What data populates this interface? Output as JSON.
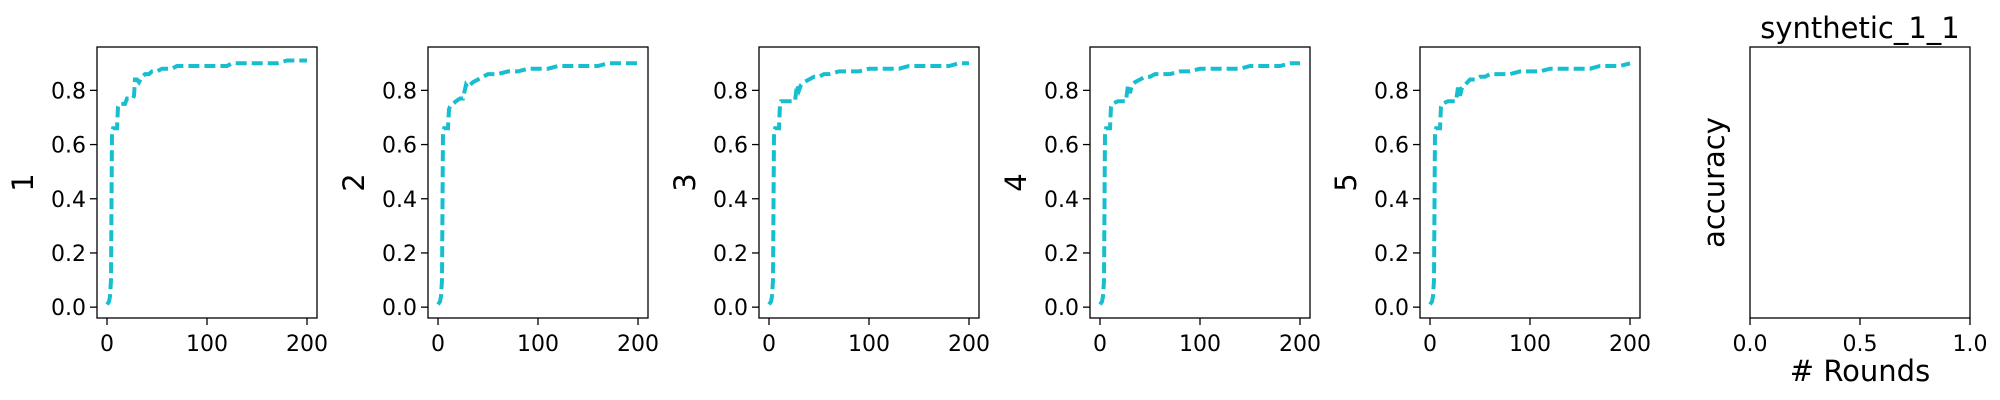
{
  "style": {
    "series_color": "#17becf"
  },
  "chart_data": [
    {
      "type": "line",
      "ylabel": "1",
      "xticks": [
        "0",
        "100",
        "200"
      ],
      "yticks": [
        "0.0",
        "0.2",
        "0.4",
        "0.6",
        "0.8"
      ],
      "xlim": [
        -10,
        210
      ],
      "ylim": [
        -0.04,
        0.96
      ],
      "grid": false,
      "series": [
        {
          "x": [
            0,
            2,
            3,
            4,
            5,
            6,
            8,
            10,
            11,
            12,
            18,
            19,
            20,
            26,
            27,
            28,
            30,
            32,
            35,
            38,
            42,
            45,
            50,
            55,
            60,
            65,
            70,
            75,
            80,
            90,
            100,
            110,
            120,
            125,
            130,
            140,
            150,
            160,
            170,
            180,
            190,
            200
          ],
          "y": [
            0.01,
            0.02,
            0.04,
            0.1,
            0.65,
            0.66,
            0.66,
            0.66,
            0.74,
            0.75,
            0.75,
            0.76,
            0.77,
            0.77,
            0.78,
            0.84,
            0.84,
            0.83,
            0.85,
            0.86,
            0.86,
            0.87,
            0.87,
            0.88,
            0.88,
            0.88,
            0.89,
            0.89,
            0.89,
            0.89,
            0.89,
            0.89,
            0.89,
            0.9,
            0.9,
            0.9,
            0.9,
            0.9,
            0.9,
            0.91,
            0.91,
            0.91
          ]
        }
      ]
    },
    {
      "type": "line",
      "ylabel": "2",
      "xticks": [
        "0",
        "100",
        "200"
      ],
      "yticks": [
        "0.0",
        "0.2",
        "0.4",
        "0.6",
        "0.8"
      ],
      "xlim": [
        -10,
        210
      ],
      "ylim": [
        -0.04,
        0.96
      ],
      "grid": false,
      "series": [
        {
          "x": [
            0,
            2,
            3,
            4,
            5,
            6,
            8,
            10,
            11,
            12,
            18,
            22,
            25,
            28,
            30,
            32,
            35,
            40,
            45,
            50,
            55,
            60,
            70,
            80,
            90,
            100,
            110,
            120,
            130,
            140,
            150,
            160,
            170,
            180,
            190,
            200
          ],
          "y": [
            0.01,
            0.02,
            0.04,
            0.1,
            0.65,
            0.66,
            0.66,
            0.66,
            0.73,
            0.74,
            0.76,
            0.77,
            0.77,
            0.82,
            0.81,
            0.82,
            0.83,
            0.84,
            0.85,
            0.86,
            0.86,
            0.86,
            0.87,
            0.87,
            0.88,
            0.88,
            0.88,
            0.89,
            0.89,
            0.89,
            0.89,
            0.89,
            0.9,
            0.9,
            0.9,
            0.9
          ]
        }
      ]
    },
    {
      "type": "line",
      "ylabel": "3",
      "xticks": [
        "0",
        "100",
        "200"
      ],
      "yticks": [
        "0.0",
        "0.2",
        "0.4",
        "0.6",
        "0.8"
      ],
      "xlim": [
        -10,
        210
      ],
      "ylim": [
        -0.04,
        0.96
      ],
      "grid": false,
      "series": [
        {
          "x": [
            0,
            2,
            3,
            4,
            5,
            6,
            8,
            10,
            11,
            12,
            18,
            22,
            26,
            28,
            30,
            32,
            35,
            40,
            45,
            50,
            55,
            60,
            70,
            80,
            90,
            100,
            110,
            120,
            130,
            140,
            150,
            160,
            170,
            180,
            190,
            200
          ],
          "y": [
            0.01,
            0.02,
            0.04,
            0.1,
            0.65,
            0.66,
            0.66,
            0.66,
            0.75,
            0.76,
            0.76,
            0.76,
            0.76,
            0.82,
            0.8,
            0.82,
            0.83,
            0.84,
            0.85,
            0.85,
            0.86,
            0.86,
            0.87,
            0.87,
            0.87,
            0.88,
            0.88,
            0.88,
            0.88,
            0.89,
            0.89,
            0.89,
            0.89,
            0.89,
            0.9,
            0.9
          ]
        }
      ]
    },
    {
      "type": "line",
      "ylabel": "4",
      "xticks": [
        "0",
        "100",
        "200"
      ],
      "yticks": [
        "0.0",
        "0.2",
        "0.4",
        "0.6",
        "0.8"
      ],
      "xlim": [
        -10,
        210
      ],
      "ylim": [
        -0.04,
        0.96
      ],
      "grid": false,
      "series": [
        {
          "x": [
            0,
            2,
            3,
            4,
            5,
            6,
            8,
            10,
            11,
            12,
            18,
            22,
            26,
            28,
            30,
            32,
            35,
            40,
            45,
            50,
            55,
            60,
            70,
            80,
            90,
            100,
            110,
            120,
            130,
            140,
            150,
            160,
            170,
            180,
            190,
            200
          ],
          "y": [
            0.01,
            0.02,
            0.04,
            0.1,
            0.65,
            0.66,
            0.66,
            0.66,
            0.74,
            0.75,
            0.76,
            0.76,
            0.76,
            0.82,
            0.79,
            0.82,
            0.83,
            0.84,
            0.85,
            0.85,
            0.86,
            0.86,
            0.86,
            0.87,
            0.87,
            0.88,
            0.88,
            0.88,
            0.88,
            0.88,
            0.89,
            0.89,
            0.89,
            0.89,
            0.9,
            0.9
          ]
        }
      ]
    },
    {
      "type": "line",
      "ylabel": "5",
      "xticks": [
        "0",
        "100",
        "200"
      ],
      "yticks": [
        "0.0",
        "0.2",
        "0.4",
        "0.6",
        "0.8"
      ],
      "xlim": [
        -10,
        210
      ],
      "ylim": [
        -0.04,
        0.96
      ],
      "grid": false,
      "series": [
        {
          "x": [
            0,
            2,
            3,
            4,
            5,
            6,
            8,
            10,
            11,
            12,
            18,
            22,
            26,
            28,
            30,
            32,
            35,
            40,
            45,
            50,
            55,
            60,
            70,
            80,
            90,
            100,
            110,
            120,
            130,
            140,
            150,
            160,
            170,
            180,
            190,
            200
          ],
          "y": [
            0.01,
            0.02,
            0.04,
            0.1,
            0.65,
            0.66,
            0.66,
            0.66,
            0.74,
            0.75,
            0.76,
            0.76,
            0.76,
            0.81,
            0.78,
            0.81,
            0.82,
            0.84,
            0.84,
            0.85,
            0.85,
            0.86,
            0.86,
            0.86,
            0.87,
            0.87,
            0.87,
            0.88,
            0.88,
            0.88,
            0.88,
            0.88,
            0.89,
            0.89,
            0.89,
            0.9
          ]
        }
      ]
    },
    {
      "type": "line",
      "title": "synthetic_1_1",
      "xlabel": "# Rounds",
      "ylabel": "accuracy",
      "xticks": [
        "0.0",
        "0.5",
        "1.0"
      ],
      "yticks": [],
      "xlim": [
        0,
        1
      ],
      "ylim": [
        0,
        1
      ],
      "grid": false,
      "series": []
    }
  ]
}
